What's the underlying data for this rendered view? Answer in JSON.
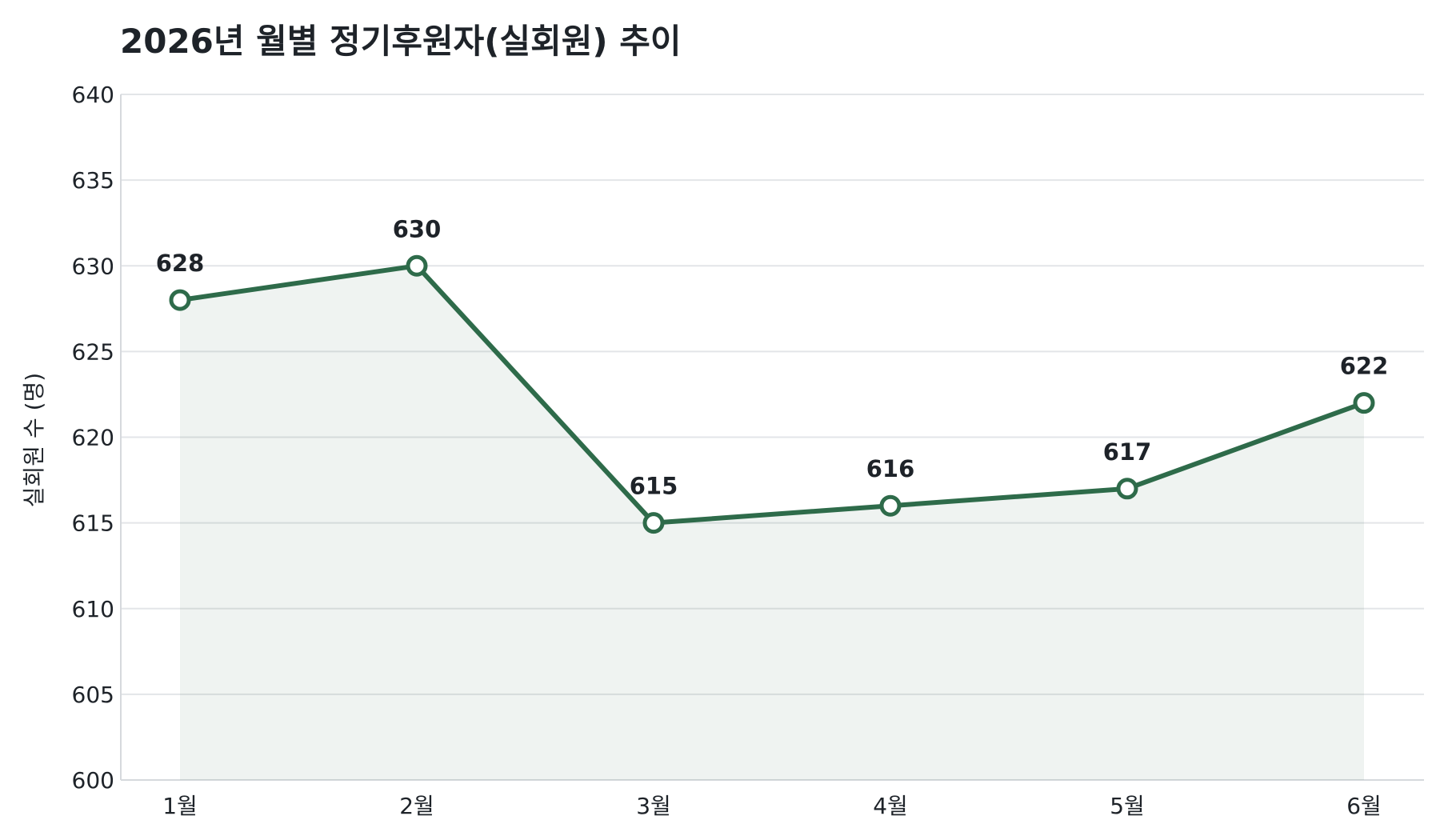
{
  "chart_data": {
    "type": "line",
    "title": "2026년 월별 정기후원자(실회원) 추이",
    "xlabel": "",
    "ylabel": "실회원 수 (명)",
    "categories": [
      "1월",
      "2월",
      "3월",
      "4월",
      "5월",
      "6월"
    ],
    "series": [
      {
        "values": [
          628,
          630,
          615,
          616,
          617,
          622
        ]
      }
    ],
    "ylim": [
      600,
      640
    ],
    "yticks": [
      600,
      605,
      610,
      615,
      620,
      625,
      630,
      635,
      640
    ],
    "grid": true,
    "area_fill": true,
    "data_labels": true,
    "colors": {
      "line": "#2e6b4a",
      "fill": "#2e6b4a",
      "grid": "#e3e5e8",
      "text": "#1e2329"
    }
  }
}
